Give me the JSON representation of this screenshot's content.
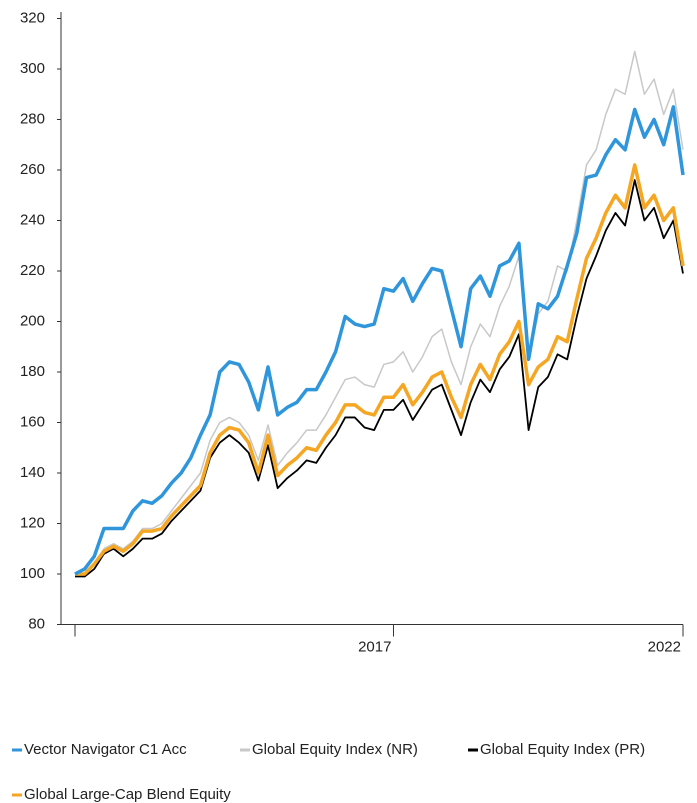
{
  "chart_data": {
    "type": "line",
    "categories": [
      null,
      null,
      null,
      null,
      null,
      null,
      null,
      null,
      null,
      null,
      null,
      null,
      null,
      null,
      null,
      null,
      null,
      null,
      null,
      null,
      null,
      null,
      null,
      null,
      null,
      null,
      null,
      null,
      null,
      null,
      null,
      null,
      null,
      "2017",
      null,
      null,
      null,
      null,
      null,
      null,
      null,
      null,
      null,
      null,
      null,
      null,
      null,
      null,
      null,
      null,
      null,
      null,
      null,
      null,
      null,
      null,
      null,
      null,
      null,
      null,
      null,
      null,
      null,
      "2022"
    ],
    "ylim": [
      80,
      320
    ],
    "yticks": [
      80,
      100,
      120,
      140,
      160,
      180,
      200,
      220,
      240,
      260,
      280,
      300,
      320
    ],
    "series": [
      {
        "name": "Vector Navigator C1 Acc",
        "color": "#2f96dc",
        "values": [
          100,
          102,
          107,
          118,
          118,
          118,
          125,
          129,
          128,
          131,
          136,
          140,
          146,
          155,
          163,
          180,
          184,
          183,
          176,
          165,
          182,
          163,
          166,
          168,
          173,
          173,
          180,
          188,
          202,
          199,
          198,
          199,
          213,
          212,
          217,
          208,
          215,
          221,
          220,
          205,
          190,
          213,
          218,
          210,
          222,
          224,
          231,
          185,
          207,
          205,
          210,
          222,
          235,
          257,
          258,
          266,
          272,
          268,
          284,
          273,
          280,
          270,
          285,
          258
        ]
      },
      {
        "name": "Global Equity Index (NR)",
        "color": "#c8c8c8",
        "values": [
          100,
          100,
          104,
          110,
          112,
          110,
          113,
          118,
          118,
          120,
          125,
          130,
          135,
          140,
          153,
          160,
          162,
          160,
          155,
          145,
          159,
          143,
          148,
          152,
          157,
          157,
          163,
          170,
          177,
          178,
          175,
          174,
          183,
          184,
          188,
          180,
          186,
          194,
          197,
          184,
          175,
          190,
          199,
          194,
          206,
          214,
          226,
          185,
          203,
          208,
          222,
          220,
          240,
          262,
          268,
          282,
          292,
          290,
          307,
          290,
          296,
          282,
          292,
          268
        ]
      },
      {
        "name": "Global Equity Index (PR)",
        "color": "#000000",
        "values": [
          99,
          99,
          102,
          108,
          110,
          107,
          110,
          114,
          114,
          116,
          121,
          125,
          129,
          133,
          146,
          152,
          155,
          152,
          148,
          137,
          151,
          134,
          138,
          141,
          145,
          144,
          150,
          155,
          162,
          162,
          158,
          157,
          165,
          165,
          169,
          161,
          167,
          173,
          175,
          165,
          155,
          168,
          177,
          172,
          181,
          186,
          195,
          157,
          174,
          178,
          187,
          185,
          202,
          217,
          226,
          236,
          243,
          238,
          256,
          240,
          245,
          233,
          240,
          219
        ]
      },
      {
        "name": "Global Large-Cap Blend Equity",
        "color": "#f5a623",
        "values": [
          100,
          100,
          104,
          109,
          111,
          109,
          112,
          117,
          117,
          118,
          123,
          127,
          131,
          135,
          148,
          155,
          158,
          157,
          152,
          140,
          155,
          139,
          143,
          146,
          150,
          149,
          155,
          160,
          167,
          167,
          164,
          163,
          170,
          170,
          175,
          167,
          172,
          178,
          180,
          170,
          162,
          175,
          183,
          177,
          187,
          192,
          200,
          175,
          182,
          185,
          194,
          192,
          209,
          225,
          233,
          243,
          250,
          245,
          262,
          245,
          250,
          240,
          245,
          222
        ]
      }
    ]
  }
}
